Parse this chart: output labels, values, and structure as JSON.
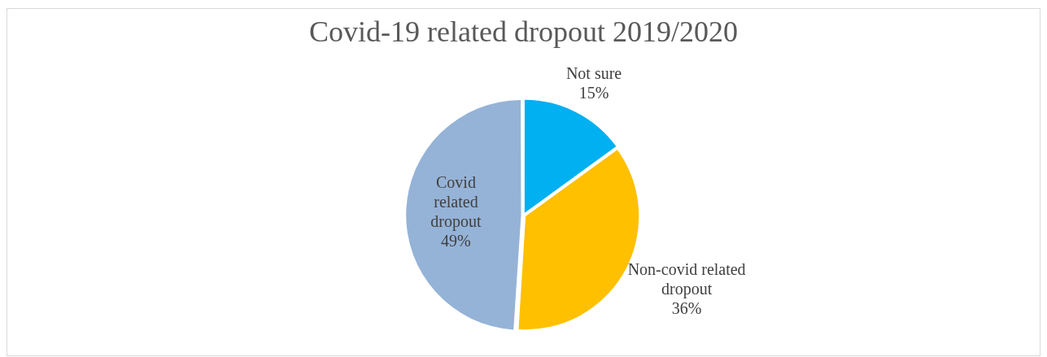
{
  "chart_data": {
    "type": "pie",
    "title": "Covid-19 related dropout 2019/2020",
    "categories": [
      "Not sure",
      "Non-covid related dropout",
      "Covid related dropout"
    ],
    "values": [
      15,
      36,
      49
    ],
    "colors": [
      "#00b0f0",
      "#ffc000",
      "#95b3d7"
    ],
    "value_labels": [
      "15%",
      "36%",
      "49%"
    ],
    "legend": false
  }
}
